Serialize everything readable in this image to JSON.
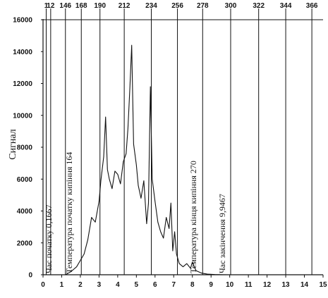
{
  "chart_data": {
    "type": "line",
    "title": "",
    "xlabel": "",
    "ylabel": "Сигнал",
    "xlim": [
      0,
      15
    ],
    "ylim": [
      0,
      16000
    ],
    "x_ticks": [
      0,
      1,
      2,
      3,
      4,
      5,
      6,
      7,
      8,
      9,
      10,
      11,
      12,
      13,
      14,
      15
    ],
    "x_tick_labels": [
      "0",
      "1",
      "2",
      "3",
      "4",
      "5",
      "6",
      "7",
      "8",
      "9",
      "10",
      "11",
      "12",
      "13",
      "14",
      "15"
    ],
    "y_ticks": [
      0,
      2000,
      4000,
      6000,
      8000,
      10000,
      12000,
      14000,
      16000
    ],
    "y_tick_labels": [
      "0",
      "2000",
      "4000",
      "6000",
      "8000",
      "10000",
      "12000",
      "14000",
      "16000"
    ],
    "temperature_scale": [
      {
        "x": 0.17,
        "label": "1"
      },
      {
        "x": 0.41,
        "label": "12"
      },
      {
        "x": 1.2,
        "label": "146"
      },
      {
        "x": 2.05,
        "label": "168"
      },
      {
        "x": 3.05,
        "label": "190"
      },
      {
        "x": 4.35,
        "label": "212"
      },
      {
        "x": 5.8,
        "label": "234"
      },
      {
        "x": 7.2,
        "label": "256"
      },
      {
        "x": 8.55,
        "label": "278"
      },
      {
        "x": 10.05,
        "label": "300"
      },
      {
        "x": 11.55,
        "label": "322"
      },
      {
        "x": 13.0,
        "label": "344"
      },
      {
        "x": 14.4,
        "label": "366"
      }
    ],
    "annotations": [
      {
        "x": 0.45,
        "y": 0,
        "text": "Час початку 0,1667"
      },
      {
        "x": 1.55,
        "y": 0,
        "text": "Температура початку кипіння 164"
      },
      {
        "x": 8.2,
        "y": 0,
        "text": "Температура кінця кипіння 270"
      },
      {
        "x": 9.75,
        "y": 0,
        "text": "Час закінчення 9,9467"
      }
    ],
    "series": [
      {
        "x": [
          0,
          0.17,
          1.2,
          1.5,
          1.8,
          2.0,
          2.2,
          2.4,
          2.6,
          2.8,
          3.0,
          3.1,
          3.25,
          3.35,
          3.45,
          3.55,
          3.7,
          3.85,
          4.0,
          4.15,
          4.3,
          4.45,
          4.55,
          4.65,
          4.75,
          4.85,
          5.0,
          5.1,
          5.25,
          5.4,
          5.55,
          5.65,
          5.75,
          5.85,
          6.0,
          6.15,
          6.3,
          6.45,
          6.6,
          6.75,
          6.85,
          6.95,
          7.05,
          7.15,
          7.3,
          7.5,
          7.7,
          7.9,
          8.0,
          8.2,
          8.5,
          8.8,
          9.2,
          9.6,
          10.0,
          11.0,
          12.0,
          13.0,
          14.0,
          14.6,
          15.0
        ],
        "y": [
          0,
          0,
          0,
          200,
          500,
          900,
          1300,
          2200,
          3600,
          3300,
          4600,
          5900,
          7400,
          9900,
          6600,
          6000,
          5400,
          6500,
          6300,
          5700,
          7100,
          7600,
          9200,
          11700,
          14400,
          8200,
          6900,
          5600,
          4800,
          5900,
          3200,
          4500,
          11800,
          6000,
          4600,
          3300,
          2700,
          2300,
          3600,
          2900,
          4500,
          1500,
          2700,
          1300,
          700,
          500,
          700,
          400,
          800,
          250,
          100,
          40,
          15,
          5,
          0,
          0,
          0,
          0,
          0,
          0,
          0
        ]
      }
    ],
    "grid": false,
    "legend": "none",
    "line_color": "#111111"
  }
}
